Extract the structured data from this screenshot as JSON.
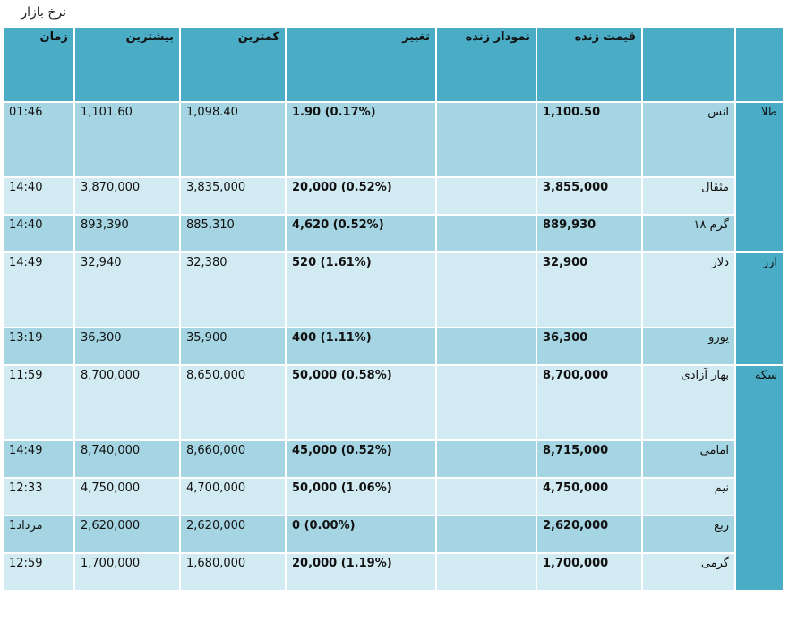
{
  "page_title": "نرخ بازار",
  "headers": {
    "category": "",
    "name": "",
    "live_price": "قیمت زنده",
    "live_chart": "نمودار زنده",
    "change": "تغییر",
    "low": "کمترین",
    "high": "بیشترین",
    "time": "زمان"
  },
  "groups": [
    {
      "category": "طلا",
      "rows": [
        {
          "name": "انس",
          "price": "1,100.50",
          "chart": "",
          "change": "1.90 (0.17%)",
          "low": "1,098.40",
          "high": "1,101.60",
          "time": "01:46"
        },
        {
          "name": "مثقال",
          "price": "3,855,000",
          "chart": "",
          "change": "20,000 (0.52%)",
          "low": "3,835,000",
          "high": "3,870,000",
          "time": "14:40"
        },
        {
          "name": "گرم ۱۸",
          "price": "889,930",
          "chart": "",
          "change": "4,620 (0.52%)",
          "low": "885,310",
          "high": "893,390",
          "time": "14:40"
        }
      ]
    },
    {
      "category": "ارز",
      "rows": [
        {
          "name": "دلار",
          "price": "32,900",
          "chart": "",
          "change": "520 (1.61%)",
          "low": "32,380",
          "high": "32,940",
          "time": "14:49"
        },
        {
          "name": "یورو",
          "price": "36,300",
          "chart": "",
          "change": "400 (1.11%)",
          "low": "35,900",
          "high": "36,300",
          "time": "13:19"
        }
      ]
    },
    {
      "category": "سکه",
      "rows": [
        {
          "name": "بهار آزادی",
          "price": "8,700,000",
          "chart": "",
          "change": "50,000 (0.58%)",
          "low": "8,650,000",
          "high": "8,700,000",
          "time": "11:59"
        },
        {
          "name": "امامی",
          "price": "8,715,000",
          "chart": "",
          "change": "45,000 (0.52%)",
          "low": "8,660,000",
          "high": "8,740,000",
          "time": "14:49"
        },
        {
          "name": "نیم",
          "price": "4,750,000",
          "chart": "",
          "change": "50,000 (1.06%)",
          "low": "4,700,000",
          "high": "4,750,000",
          "time": "12:33"
        },
        {
          "name": "ربع",
          "price": "2,620,000",
          "chart": "",
          "change": "0 (0.00%)",
          "low": "2,620,000",
          "high": "2,620,000",
          "time": "1مرداد"
        },
        {
          "name": "گرمی",
          "price": "1,700,000",
          "chart": "",
          "change": "20,000 (1.19%)",
          "low": "1,680,000",
          "high": "1,700,000",
          "time": "12:59"
        }
      ]
    }
  ]
}
